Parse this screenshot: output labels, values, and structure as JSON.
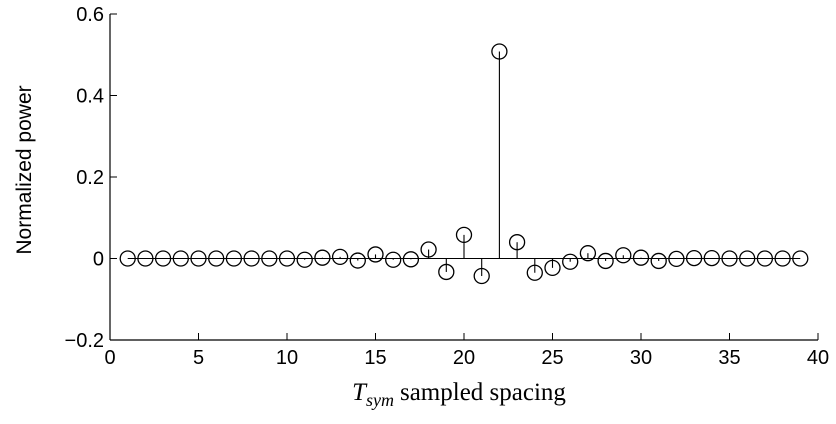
{
  "chart_data": {
    "type": "stem",
    "title": "",
    "ylabel": "Normalized power",
    "xlabel": {
      "symbol": "T",
      "subscript": "sym",
      "text": "sampled spacing"
    },
    "xlim": [
      0,
      40
    ],
    "ylim": [
      -0.2,
      0.6
    ],
    "xticks": [
      0,
      5,
      10,
      15,
      20,
      25,
      30,
      35,
      40
    ],
    "xtick_labels": [
      "0",
      "5",
      "10",
      "15",
      "20",
      "25",
      "30",
      "35",
      "40"
    ],
    "yticks": [
      -0.2,
      0,
      0.2,
      0.4,
      0.6
    ],
    "ytick_labels": [
      "−0.2",
      "0",
      "0.2",
      "0.4",
      "0.6"
    ],
    "grid": false,
    "marker": "open-circle",
    "color": "#000000",
    "x": [
      1,
      2,
      3,
      4,
      5,
      6,
      7,
      8,
      9,
      10,
      11,
      12,
      13,
      14,
      15,
      16,
      17,
      18,
      19,
      20,
      21,
      22,
      23,
      24,
      25,
      26,
      27,
      28,
      29,
      30,
      31,
      32,
      33,
      34,
      35,
      36,
      37,
      38,
      39
    ],
    "values": [
      0.0,
      0.0,
      0.0,
      0.0,
      0.0,
      0.0,
      0.0,
      0.0,
      0.0,
      0.0,
      -0.003,
      0.002,
      0.004,
      -0.005,
      0.01,
      -0.003,
      -0.002,
      0.022,
      -0.033,
      0.058,
      -0.043,
      0.508,
      0.04,
      -0.035,
      -0.023,
      -0.008,
      0.013,
      -0.006,
      0.008,
      0.002,
      -0.006,
      -0.001,
      0.001,
      0.001,
      0.0,
      0.0,
      0.0,
      0.0,
      0.0
    ]
  }
}
